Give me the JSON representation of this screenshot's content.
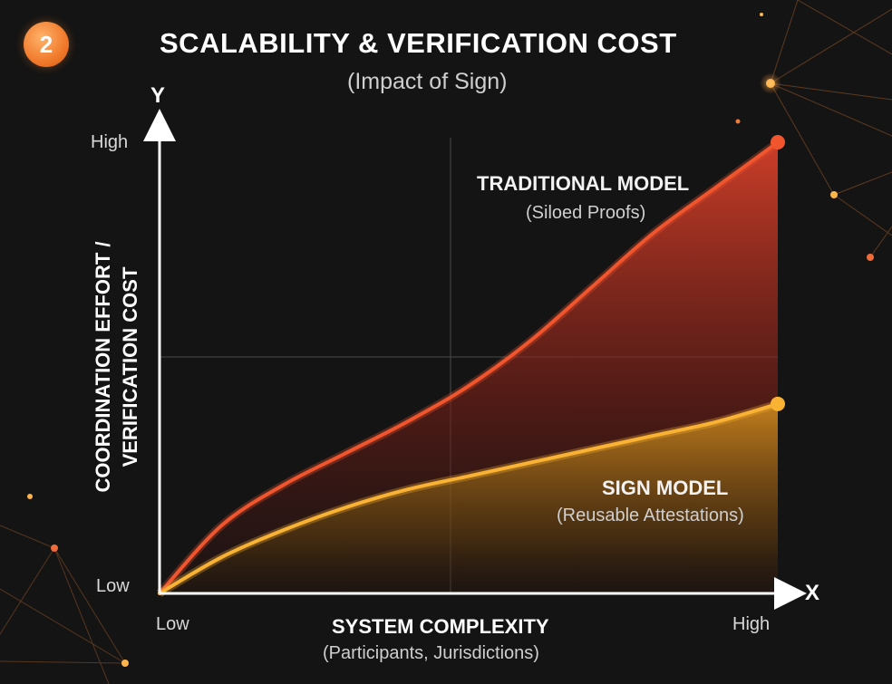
{
  "badge": "2",
  "title": "SCALABILITY & VERIFICATION COST",
  "subtitle": "(Impact of Sign)",
  "chart_data": {
    "type": "area",
    "title": "SCALABILITY & VERIFICATION COST",
    "subtitle": "(Impact of Sign)",
    "x_axis_letter": "X",
    "y_axis_letter": "Y",
    "xlabel": "SYSTEM COMPLEXITY",
    "xlabel_sub": "(Participants, Jurisdictions)",
    "ylabel_line1": "COORDINATION EFFORT /",
    "ylabel_line2": "VERIFICATION COST",
    "x_ticks": [
      "Low",
      "High"
    ],
    "y_ticks": [
      "Low",
      "High"
    ],
    "xlim": [
      0,
      1
    ],
    "ylim": [
      0,
      1
    ],
    "grid": true,
    "series": [
      {
        "name": "TRADITIONAL MODEL",
        "note": "(Siloed Proofs)",
        "color": "#f0552e",
        "x": [
          0,
          0.1,
          0.2,
          0.3,
          0.4,
          0.5,
          0.6,
          0.7,
          0.8,
          0.9,
          1.0
        ],
        "values": [
          0,
          0.15,
          0.24,
          0.31,
          0.38,
          0.46,
          0.56,
          0.68,
          0.8,
          0.9,
          1.0
        ]
      },
      {
        "name": "SIGN MODEL",
        "note": "(Reusable Attestations)",
        "color": "#f9b233",
        "x": [
          0,
          0.1,
          0.2,
          0.3,
          0.4,
          0.5,
          0.6,
          0.7,
          0.8,
          0.9,
          1.0
        ],
        "values": [
          0,
          0.08,
          0.14,
          0.19,
          0.23,
          0.26,
          0.29,
          0.32,
          0.35,
          0.38,
          0.42
        ]
      }
    ]
  },
  "colors": {
    "background": "#141414",
    "traditional": "#f0552e",
    "sign": "#f9b233",
    "accent": "#f07a2c"
  }
}
